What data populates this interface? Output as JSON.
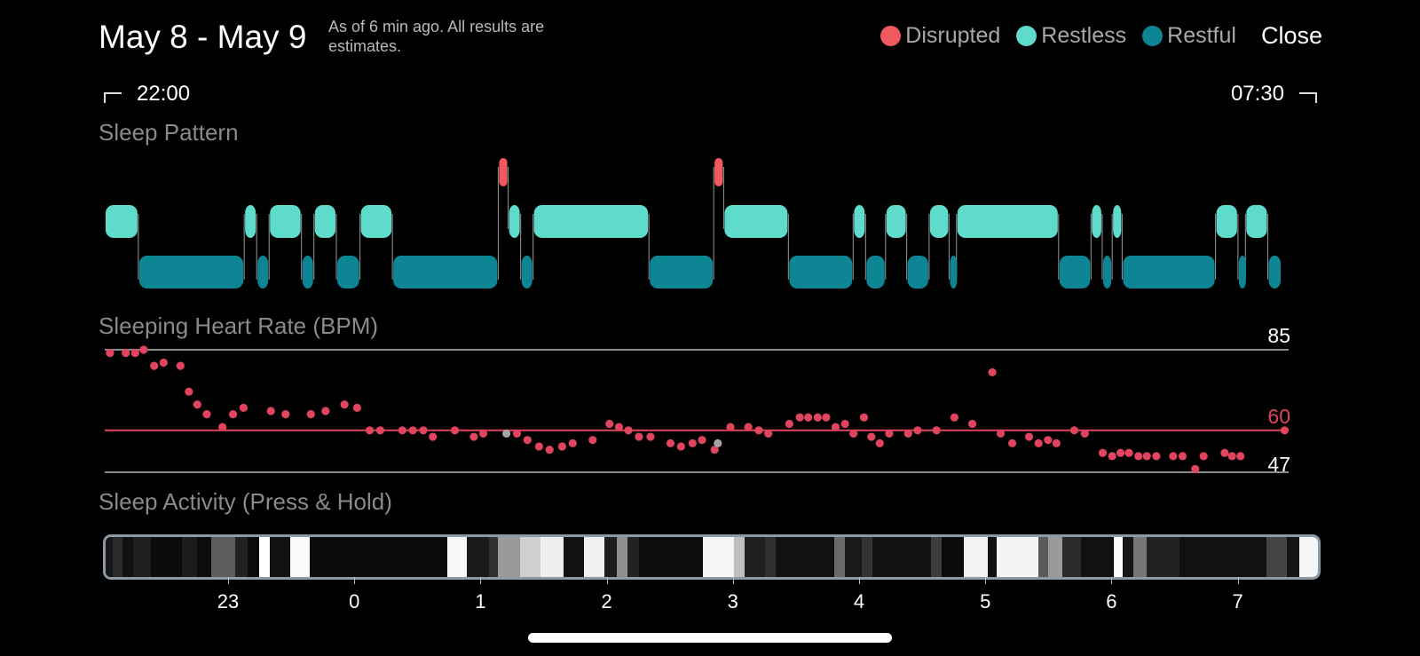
{
  "header": {
    "title": "May 8 - May 9",
    "subtitle": "As of 6 min ago. All results are estimates.",
    "close_label": "Close"
  },
  "legend": [
    {
      "label": "Disrupted",
      "color": "#f05a5f"
    },
    {
      "label": "Restless",
      "color": "#5edbcb"
    },
    {
      "label": "Restful",
      "color": "#0d8595"
    }
  ],
  "time_range": {
    "start": "22:00",
    "end": "07:30"
  },
  "sections": {
    "pattern": "Sleep Pattern",
    "heart_rate": "Sleeping Heart Rate (BPM)",
    "activity": "Sleep Activity (Press & Hold)"
  },
  "chart_data": [
    {
      "type": "timeline",
      "name_hint": "sleep-pattern",
      "x_unit": "hours since 22:00",
      "x_range": [
        0,
        9.5
      ],
      "segments": [
        {
          "state": "restless",
          "start": 0.0,
          "end": 0.27
        },
        {
          "state": "restful",
          "start": 0.27,
          "end": 1.12
        },
        {
          "state": "restless",
          "start": 1.12,
          "end": 1.22
        },
        {
          "state": "restful",
          "start": 1.22,
          "end": 1.32
        },
        {
          "state": "restless",
          "start": 1.32,
          "end": 1.58
        },
        {
          "state": "restful",
          "start": 1.58,
          "end": 1.68
        },
        {
          "state": "restless",
          "start": 1.68,
          "end": 1.86
        },
        {
          "state": "restful",
          "start": 1.86,
          "end": 2.05
        },
        {
          "state": "restless",
          "start": 2.05,
          "end": 2.31
        },
        {
          "state": "restful",
          "start": 2.31,
          "end": 3.16
        },
        {
          "state": "disrupted",
          "start": 3.16,
          "end": 3.24
        },
        {
          "state": "restless",
          "start": 3.24,
          "end": 3.34
        },
        {
          "state": "restful",
          "start": 3.34,
          "end": 3.44
        },
        {
          "state": "restless",
          "start": 3.44,
          "end": 4.37
        },
        {
          "state": "restful",
          "start": 4.37,
          "end": 4.89
        },
        {
          "state": "disrupted",
          "start": 4.89,
          "end": 4.97
        },
        {
          "state": "restless",
          "start": 4.97,
          "end": 5.49
        },
        {
          "state": "restful",
          "start": 5.49,
          "end": 6.01
        },
        {
          "state": "restless",
          "start": 6.01,
          "end": 6.11
        },
        {
          "state": "restful",
          "start": 6.11,
          "end": 6.27
        },
        {
          "state": "restless",
          "start": 6.27,
          "end": 6.44
        },
        {
          "state": "restful",
          "start": 6.44,
          "end": 6.62
        },
        {
          "state": "restless",
          "start": 6.62,
          "end": 6.78
        },
        {
          "state": "restful",
          "start": 6.78,
          "end": 6.84
        },
        {
          "state": "restless",
          "start": 6.84,
          "end": 7.66
        },
        {
          "state": "restful",
          "start": 7.66,
          "end": 7.92
        },
        {
          "state": "restless",
          "start": 7.92,
          "end": 8.01
        },
        {
          "state": "restful",
          "start": 8.01,
          "end": 8.09
        },
        {
          "state": "restless",
          "start": 8.09,
          "end": 8.17
        },
        {
          "state": "restful",
          "start": 8.17,
          "end": 8.92
        },
        {
          "state": "restless",
          "start": 8.92,
          "end": 9.1
        },
        {
          "state": "restful",
          "start": 9.1,
          "end": 9.16
        },
        {
          "state": "restless",
          "start": 9.16,
          "end": 9.34
        },
        {
          "state": "restful",
          "start": 9.34,
          "end": 9.45
        }
      ]
    },
    {
      "type": "scatter",
      "name_hint": "sleeping-heart-rate",
      "ylabel": "Sleeping Heart Rate (BPM)",
      "ylim": [
        47,
        85
      ],
      "reference_lines": [
        {
          "value": 85,
          "label": "85",
          "color": "#8a8a8a"
        },
        {
          "value": 60,
          "label": "60",
          "color": "#e0445e"
        },
        {
          "value": 47,
          "label": "47",
          "color": "#8a8a8a"
        }
      ],
      "points": [
        [
          0.05,
          84
        ],
        [
          0.2,
          84
        ],
        [
          0.29,
          84
        ],
        [
          0.37,
          85
        ],
        [
          0.47,
          80
        ],
        [
          0.56,
          81
        ],
        [
          0.72,
          80
        ],
        [
          0.8,
          72
        ],
        [
          0.88,
          68
        ],
        [
          0.97,
          65
        ],
        [
          1.12,
          61
        ],
        [
          1.22,
          65
        ],
        [
          1.32,
          67
        ],
        [
          1.58,
          66
        ],
        [
          1.72,
          65
        ],
        [
          1.96,
          65
        ],
        [
          2.1,
          66
        ],
        [
          2.28,
          68
        ],
        [
          2.4,
          67
        ],
        [
          2.52,
          60
        ],
        [
          2.62,
          60
        ],
        [
          2.83,
          60
        ],
        [
          2.93,
          60
        ],
        [
          3.03,
          60
        ],
        [
          3.12,
          58
        ],
        [
          3.33,
          60
        ],
        [
          3.51,
          58
        ],
        [
          3.6,
          59
        ],
        [
          3.82,
          59,
          "gray"
        ],
        [
          3.92,
          59
        ],
        [
          4.02,
          57
        ],
        [
          4.13,
          55
        ],
        [
          4.23,
          54
        ],
        [
          4.35,
          55
        ],
        [
          4.45,
          56
        ],
        [
          4.64,
          57
        ],
        [
          4.8,
          62
        ],
        [
          4.89,
          61
        ],
        [
          4.98,
          60
        ],
        [
          5.08,
          58
        ],
        [
          5.19,
          58
        ],
        [
          5.38,
          56
        ],
        [
          5.48,
          55
        ],
        [
          5.59,
          56
        ],
        [
          5.68,
          57
        ],
        [
          5.8,
          54
        ],
        [
          5.83,
          56,
          "gray"
        ],
        [
          5.95,
          61
        ],
        [
          6.12,
          61
        ],
        [
          6.22,
          60
        ],
        [
          6.31,
          59
        ],
        [
          6.51,
          62
        ],
        [
          6.61,
          64
        ],
        [
          6.69,
          64
        ],
        [
          6.78,
          64
        ],
        [
          6.86,
          64
        ],
        [
          6.95,
          61
        ],
        [
          7.04,
          62
        ],
        [
          7.12,
          59
        ],
        [
          7.22,
          64
        ],
        [
          7.29,
          58
        ],
        [
          7.37,
          56
        ],
        [
          7.46,
          59
        ],
        [
          7.64,
          59
        ],
        [
          7.73,
          60
        ],
        [
          7.91,
          60
        ],
        [
          8.08,
          64
        ],
        [
          8.25,
          62
        ],
        [
          8.44,
          78
        ],
        [
          8.52,
          59
        ],
        [
          8.63,
          56
        ],
        [
          8.79,
          58
        ],
        [
          8.88,
          56
        ],
        [
          8.97,
          57
        ],
        [
          9.05,
          56
        ],
        [
          9.22,
          60
        ],
        [
          9.32,
          59
        ],
        [
          9.49,
          53
        ],
        [
          9.58,
          52
        ],
        [
          9.66,
          53
        ],
        [
          9.74,
          53
        ],
        [
          9.83,
          52
        ],
        [
          9.91,
          52
        ],
        [
          10.0,
          52
        ],
        [
          10.16,
          52
        ],
        [
          10.25,
          52
        ],
        [
          10.37,
          48
        ],
        [
          10.45,
          52
        ],
        [
          10.65,
          53
        ],
        [
          10.72,
          52
        ],
        [
          10.8,
          52
        ],
        [
          11.22,
          60
        ]
      ]
    }
  ],
  "activity_strip": [
    [
      "#161616",
      8
    ],
    [
      "#2a2a2a",
      10
    ],
    [
      "#111111",
      12
    ],
    [
      "#1e1e1e",
      20
    ],
    [
      "#0b0b0b",
      34
    ],
    [
      "#1c1c1c",
      16
    ],
    [
      "#0c0c0c",
      16
    ],
    [
      "#5c5c5c",
      26
    ],
    [
      "#222222",
      14
    ],
    [
      "#0a0a0a",
      12
    ],
    [
      "#ffffff",
      12
    ],
    [
      "#111111",
      22
    ],
    [
      "#fafafa",
      22
    ],
    [
      "#0a0a0a",
      150
    ],
    [
      "#f7f7f7",
      22
    ],
    [
      "#1a1a1a",
      24
    ],
    [
      "#303030",
      10
    ],
    [
      "#9a9a9a",
      24
    ],
    [
      "#cfcfcf",
      22
    ],
    [
      "#efefef",
      26
    ],
    [
      "#111111",
      22
    ],
    [
      "#f0f0f0",
      22
    ],
    [
      "#1e1e1e",
      14
    ],
    [
      "#8e8e8e",
      12
    ],
    [
      "#222222",
      12
    ],
    [
      "#0d0d0d",
      70
    ],
    [
      "#f6f6f6",
      34
    ],
    [
      "#bebebe",
      12
    ],
    [
      "#1f1f1f",
      22
    ],
    [
      "#2f2f2f",
      12
    ],
    [
      "#111111",
      64
    ],
    [
      "#6a6a6a",
      12
    ],
    [
      "#1a1a1a",
      18
    ],
    [
      "#333333",
      12
    ],
    [
      "#121212",
      64
    ],
    [
      "#3c3c3c",
      12
    ],
    [
      "#0b0b0b",
      24
    ],
    [
      "#f2f2f2",
      26
    ],
    [
      "#101010",
      10
    ],
    [
      "#f4f4f4",
      46
    ],
    [
      "#5a5a5a",
      10
    ],
    [
      "#9a9a9a",
      16
    ],
    [
      "#2a2a2a",
      20
    ],
    [
      "#111111",
      36
    ],
    [
      "#fdfdfd",
      10
    ],
    [
      "#151515",
      12
    ],
    [
      "#777777",
      14
    ],
    [
      "#222222",
      36
    ],
    [
      "#111111",
      96
    ],
    [
      "#444444",
      22
    ],
    [
      "#151515",
      14
    ],
    [
      "#f6f6f6",
      20
    ]
  ],
  "x_axis": {
    "ticks": [
      {
        "label": "23",
        "hours": 1.0
      },
      {
        "label": "0",
        "hours": 2.0
      },
      {
        "label": "1",
        "hours": 3.0
      },
      {
        "label": "2",
        "hours": 4.0
      },
      {
        "label": "3",
        "hours": 5.0
      },
      {
        "label": "4",
        "hours": 6.0
      },
      {
        "label": "5",
        "hours": 7.0
      },
      {
        "label": "6",
        "hours": 8.0
      },
      {
        "label": "7",
        "hours": 9.0
      }
    ]
  },
  "colors": {
    "disrupted": "#f05a5f",
    "restless": "#5edbcb",
    "restful": "#0d8595",
    "hr_point": "#e0445e",
    "hr_point_gray": "#a5a5a5"
  }
}
